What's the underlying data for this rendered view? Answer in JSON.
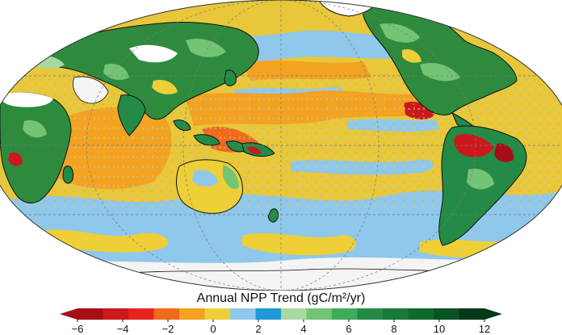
{
  "map": {
    "projection": "mollweide",
    "ocean_base_color": "#e8c73a",
    "land_base_color": "#2e8b3e",
    "graticule_color": "#7a7a7a"
  },
  "legend": {
    "title": "Annual NPP Trend (gC/m²/yr)",
    "colors": [
      "#a50f15",
      "#cb181d",
      "#e8221c",
      "#ef6a1c",
      "#f3a221",
      "#eecf38",
      "#8fc8ea",
      "#1f9ad6",
      "#a8d9a0",
      "#74c476",
      "#41ab5d",
      "#238b45",
      "#1a7a37",
      "#0e6a2c",
      "#095224",
      "#04391a"
    ],
    "ticks": [
      {
        "value": -6,
        "label": "−6"
      },
      {
        "value": -4,
        "label": "−4"
      },
      {
        "value": -2,
        "label": "−2"
      },
      {
        "value": 0,
        "label": "0"
      },
      {
        "value": 2,
        "label": "2"
      },
      {
        "value": 4,
        "label": "4"
      },
      {
        "value": 6,
        "label": "6"
      },
      {
        "value": 8,
        "label": "8"
      },
      {
        "value": 10,
        "label": "10"
      },
      {
        "value": 12,
        "label": "12"
      }
    ],
    "range": [
      -6,
      12
    ]
  }
}
